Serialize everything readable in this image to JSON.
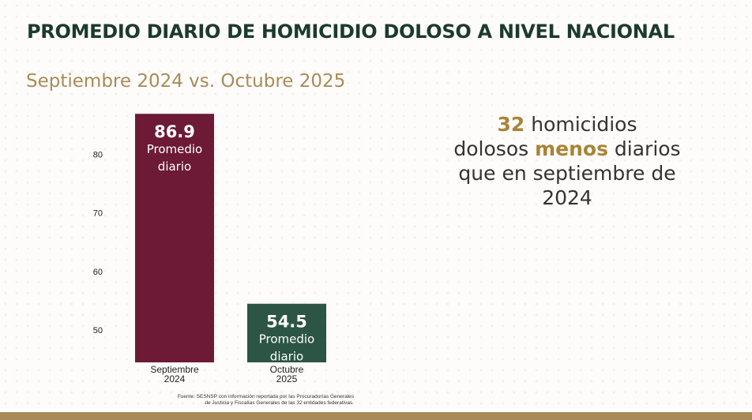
{
  "title": "PROMEDIO DIARIO DE HOMICIDIO DOLOSO A NIVEL NACIONAL",
  "subtitle": "Septiembre 2024 vs. Octubre 2025",
  "chart_data": {
    "type": "bar",
    "categories": [
      [
        "Septiembre",
        "2024"
      ],
      [
        "Octubre",
        "2025"
      ]
    ],
    "values": [
      86.9,
      54.5
    ],
    "value_labels": [
      "86.9",
      "54.5"
    ],
    "bar_caption": [
      "Promedio",
      "diario"
    ],
    "yticks": [
      50,
      60,
      70,
      80
    ],
    "ylim": [
      44.5,
      88
    ],
    "colors": [
      "#6c1a35",
      "#2c5546"
    ]
  },
  "callout": {
    "number": "32",
    "text1": " homicidios",
    "text2": "dolosos ",
    "highlight": "menos",
    "text3": " diarios",
    "line3": "que en septiembre de",
    "line4": "2024"
  },
  "source": {
    "line1": "Fuente: SESNSP con información reportada por las Procuradurías Generales",
    "line2": "de Justicia y Fiscalías Generales de las 32 entidades federativas."
  }
}
